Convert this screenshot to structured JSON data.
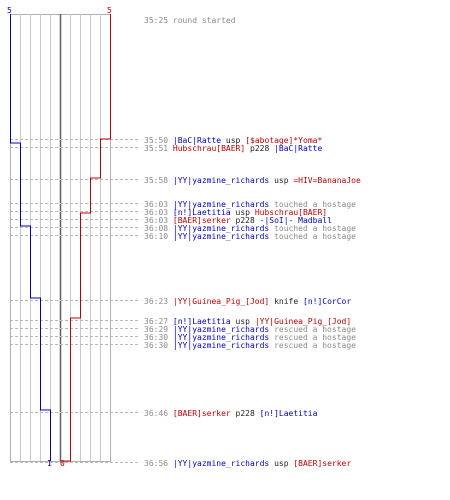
{
  "start_counts": {
    "blue": "5",
    "red": "5"
  },
  "end_counts": {
    "blue": "1",
    "red": "0"
  },
  "colors": {
    "blue": "#0000c0",
    "red": "#c00000",
    "grid": "#c8c8c8",
    "time": "#8a8a8a"
  },
  "events": [
    {
      "time": "35:25",
      "actor": "",
      "actor_team": "",
      "verb": "round started",
      "target": "",
      "target_team": ""
    },
    {
      "time": "35:50",
      "actor": "|BaC|Ratte",
      "actor_team": "blue",
      "verb": "usp",
      "target": "[$abotage]*Yoma*",
      "target_team": "red"
    },
    {
      "time": "35:51",
      "actor": "Hubschrau[BAER]",
      "actor_team": "red",
      "verb": "p228",
      "target": "|BaC|Ratte",
      "target_team": "blue"
    },
    {
      "time": "35:58",
      "actor": "|YY|yazmine_richards",
      "actor_team": "blue",
      "verb": "usp",
      "target": "=HIV=BananaJoe",
      "target_team": "red"
    },
    {
      "time": "36:03",
      "actor": "|YY|yazmine_richards",
      "actor_team": "blue",
      "verb": "touched a hostage",
      "target": "",
      "target_team": ""
    },
    {
      "time": "36:03",
      "actor": "[n!]Laetitia",
      "actor_team": "blue",
      "verb": "usp",
      "target": "Hubschrau[BAER]",
      "target_team": "red"
    },
    {
      "time": "36:03",
      "actor": "[BAER]serker",
      "actor_team": "red",
      "verb": "p228",
      "target": "-|SoI|- Madball",
      "target_team": "blue"
    },
    {
      "time": "36:08",
      "actor": "|YY|yazmine_richards",
      "actor_team": "blue",
      "verb": "touched a hostage",
      "target": "",
      "target_team": ""
    },
    {
      "time": "36:10",
      "actor": "|YY|yazmine_richards",
      "actor_team": "blue",
      "verb": "touched a hostage",
      "target": "",
      "target_team": ""
    },
    {
      "time": "36:23",
      "actor": "|YY|Guinea_Pig_[Jod]",
      "actor_team": "red",
      "verb": "knife",
      "target": "[n!]CorCor",
      "target_team": "blue"
    },
    {
      "time": "36:27",
      "actor": "[n!]Laetitia",
      "actor_team": "blue",
      "verb": "usp",
      "target": "|YY|Guinea_Pig_[Jod]",
      "target_team": "red"
    },
    {
      "time": "36:29",
      "actor": "|YY|yazmine_richards",
      "actor_team": "blue",
      "verb": "rescued a hostage",
      "target": "",
      "target_team": ""
    },
    {
      "time": "36:30",
      "actor": "|YY|yazmine_richards",
      "actor_team": "blue",
      "verb": "rescued a hostage",
      "target": "",
      "target_team": ""
    },
    {
      "time": "36:30",
      "actor": "|YY|yazmine_richards",
      "actor_team": "blue",
      "verb": "rescued a hostage",
      "target": "",
      "target_team": ""
    },
    {
      "time": "36:46",
      "actor": "[BAER]serker",
      "actor_team": "red",
      "verb": "p228",
      "target": "[n!]Laetitia",
      "target_team": "blue"
    },
    {
      "time": "36:56",
      "actor": "|YY|yazmine_richards",
      "actor_team": "blue",
      "verb": "usp",
      "target": "[BAER]serker",
      "target_team": "red"
    }
  ]
}
